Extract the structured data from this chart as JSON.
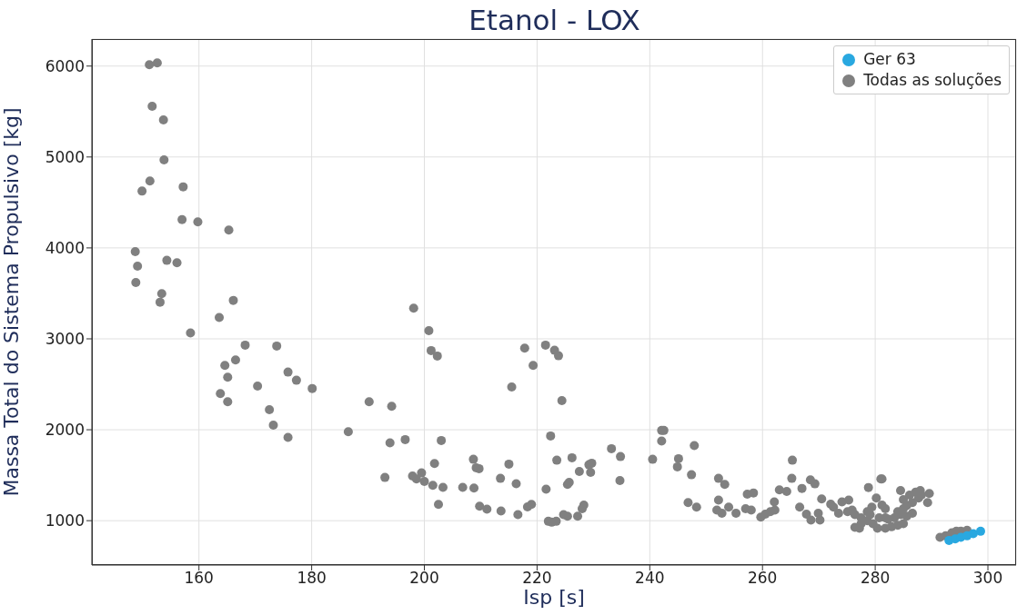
{
  "chart_data": {
    "type": "scatter",
    "title": "Etanol - LOX",
    "xlabel": "Isp [s]",
    "ylabel": "Massa Total do Sistema Propulsivo [kg]",
    "xlim": [
      141,
      305
    ],
    "xticks": [
      160,
      180,
      200,
      220,
      240,
      260,
      280,
      300
    ],
    "ylim": [
      512,
      6297
    ],
    "yticks": [
      1000,
      2000,
      3000,
      4000,
      5000,
      6000
    ],
    "grid": true,
    "legend": "top right",
    "marker": "circle",
    "series": [
      {
        "name": "Ger 63",
        "color": "#29a8e0",
        "x": [
          293.1,
          294.2,
          295.2,
          296.3,
          297.4,
          298.7
        ],
        "values": [
          783,
          799,
          816,
          833,
          856,
          883
        ]
      },
      {
        "name": "Todas as soluções",
        "color": "#808080",
        "x": [
          151.2,
          152.6,
          151.7,
          153.7,
          153.8,
          151.3,
          149.9,
          157.2,
          157.0,
          159.8,
          165.3,
          148.7,
          154.3,
          156.1,
          149.1,
          148.8,
          153.4,
          153.1,
          166.1,
          163.6,
          158.5,
          168.2,
          173.8,
          164.6,
          166.5,
          165.1,
          175.8,
          177.3,
          180.1,
          163.8,
          165.1,
          170.4,
          172.5,
          173.2,
          175.8,
          186.5,
          190.2,
          198.1,
          200.8,
          201.2,
          202.3,
          194.2,
          193.9,
          196.6,
          203.0,
          217.8,
          221.5,
          223.1,
          223.8,
          219.3,
          215.5,
          224.4,
          222.4,
          193.0,
          197.9,
          198.6,
          199.5,
          200.0,
          201.8,
          201.5,
          203.3,
          202.5,
          206.8,
          208.7,
          209.2,
          209.7,
          208.8,
          209.8,
          211.1,
          213.5,
          213.6,
          215.0,
          216.3,
          216.6,
          218.3,
          219.0,
          221.6,
          222.0,
          222.6,
          223.4,
          223.5,
          226.2,
          225.4,
          225.7,
          227.5,
          224.7,
          225.4,
          227.2,
          228.0,
          228.3,
          229.2,
          229.7,
          229.5,
          233.2,
          234.8,
          234.7,
          242.1,
          242.5,
          242.1,
          240.5,
          245.1,
          244.9,
          247.9,
          247.4,
          246.8,
          248.3,
          252.2,
          253.3,
          252.2,
          251.9,
          252.8,
          254.0,
          255.3,
          257.0,
          258.0,
          257.3,
          258.4,
          259.7,
          260.5,
          261.4,
          262.2,
          262.1,
          263.0,
          264.3,
          265.3,
          265.2,
          267.0,
          268.5,
          269.3,
          266.6,
          267.8,
          268.6,
          269.9,
          270.2,
          270.5,
          272.1,
          272.6,
          274.1,
          275.3,
          273.5,
          275.1,
          275.9,
          276.4,
          278.8,
          281.0,
          281.2,
          276.4,
          277.2,
          277.5,
          278.6,
          279.4,
          280.2,
          281.2,
          281.8,
          279.6,
          280.4,
          281.8,
          282.9,
          284.0,
          285.0,
          280.7,
          282.3,
          283.4,
          284.5,
          285.6,
          286.6,
          284.5,
          285.0,
          286.1,
          287.2,
          288.0,
          289.6,
          289.3,
          286.6,
          287.7,
          285.6,
          278.6,
          277.5,
          281.8,
          284.0,
          285.0,
          288.2,
          279.1,
          291.5,
          292.5,
          293.6,
          295.2,
          296.3,
          294.4
        ],
        "values": [
          6014,
          6034,
          5558,
          5408,
          4968,
          4735,
          4625,
          4672,
          4312,
          4286,
          4196,
          3959,
          3863,
          3836,
          3799,
          3620,
          3497,
          3403,
          3423,
          3234,
          3064,
          2931,
          2921,
          2707,
          2767,
          2578,
          2634,
          2544,
          2454,
          2398,
          2308,
          2481,
          2221,
          2051,
          1915,
          1978,
          2308,
          3337,
          3090,
          2871,
          2811,
          2258,
          1855,
          1892,
          1882,
          2897,
          2931,
          2874,
          2814,
          2707,
          2471,
          2321,
          1932,
          1475,
          1492,
          1459,
          1525,
          1432,
          1629,
          1389,
          1366,
          1179,
          1366,
          1675,
          1582,
          1572,
          1359,
          1159,
          1126,
          1465,
          1106,
          1622,
          1406,
          1066,
          1152,
          1179,
          1346,
          993,
          983,
          993,
          1665,
          1692,
          1399,
          1422,
          1542,
          1066,
          1049,
          1049,
          1132,
          1172,
          1615,
          1632,
          1532,
          1792,
          1705,
          1442,
          1992,
          1992,
          1875,
          1675,
          1682,
          1592,
          1825,
          1505,
          1199,
          1149,
          1465,
          1399,
          1226,
          1116,
          1082,
          1149,
          1082,
          1132,
          1116,
          1292,
          1305,
          1039,
          1072,
          1099,
          1116,
          1206,
          1339,
          1322,
          1665,
          1465,
          1355,
          1449,
          1405,
          1149,
          1072,
          1006,
          1082,
          1006,
          1239,
          1182,
          1149,
          1206,
          1226,
          1082,
          1099,
          1116,
          1066,
          1365,
          1459,
          1459,
          926,
          916,
          1032,
          1099,
          1149,
          1249,
          1172,
          1132,
          966,
          916,
          916,
          933,
          949,
          966,
          1032,
          1016,
          1032,
          1066,
          1049,
          1082,
          1332,
          1232,
          1282,
          1315,
          1332,
          1299,
          1199,
          1199,
          1249,
          1166,
          999,
          966,
          1032,
          1099,
          1132,
          1282,
          1066,
          816,
          833,
          866,
          883,
          893,
          883
        ]
      }
    ]
  }
}
